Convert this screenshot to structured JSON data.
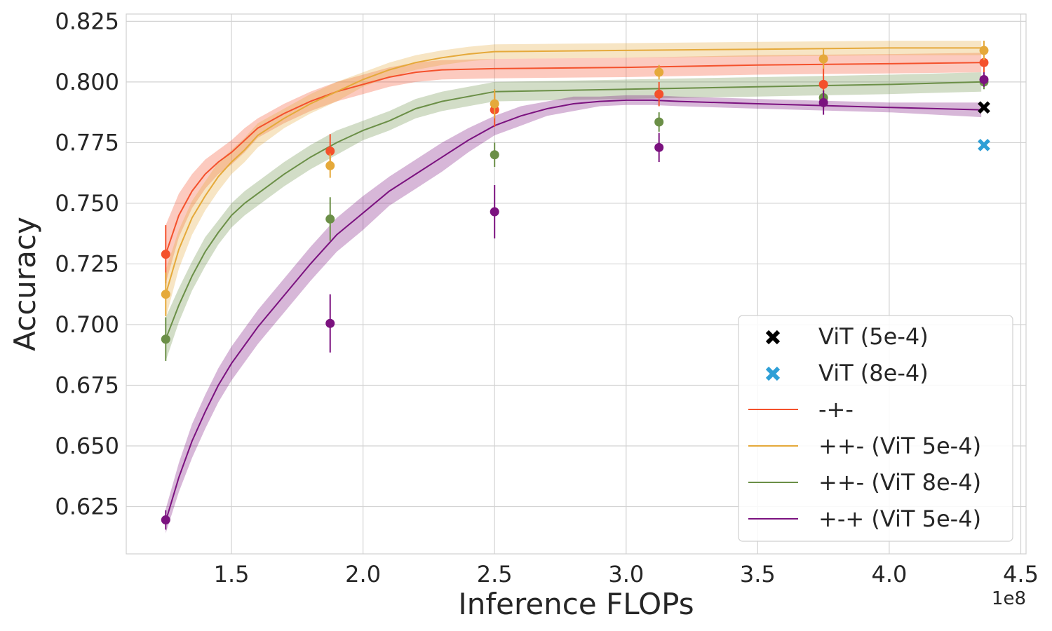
{
  "chart_data": {
    "type": "line",
    "xlabel": "Inference FLOPs",
    "ylabel": "Accuracy",
    "x_offset_label": "1e8",
    "xlim": [
      1.1,
      4.52
    ],
    "ylim": [
      0.6055,
      0.828
    ],
    "x_ticks": [
      1.5,
      2.0,
      2.5,
      3.0,
      3.5,
      4.0,
      4.5
    ],
    "x_tick_labels": [
      "1.5",
      "2.0",
      "2.5",
      "3.0",
      "3.5",
      "4.0",
      "4.5"
    ],
    "y_ticks": [
      0.625,
      0.65,
      0.675,
      0.7,
      0.725,
      0.75,
      0.775,
      0.8,
      0.825
    ],
    "y_tick_labels": [
      "0.625",
      "0.650",
      "0.675",
      "0.700",
      "0.725",
      "0.750",
      "0.775",
      "0.800",
      "0.825"
    ],
    "grid": true,
    "legend_position": "lower-right",
    "series": [
      {
        "name": "-+-",
        "color": "#f4512c",
        "curve_x": [
          1.25,
          1.3,
          1.35,
          1.4,
          1.45,
          1.5,
          1.55,
          1.6,
          1.7,
          1.8,
          1.9,
          2.0,
          2.1,
          2.2,
          2.3,
          2.5,
          3.0,
          3.5,
          4.0,
          4.35
        ],
        "curve_y": [
          0.729,
          0.745,
          0.755,
          0.762,
          0.767,
          0.771,
          0.776,
          0.781,
          0.787,
          0.792,
          0.796,
          0.799,
          0.802,
          0.804,
          0.805,
          0.8055,
          0.806,
          0.807,
          0.8075,
          0.808
        ],
        "band": [
          0.012,
          0.009,
          0.007,
          0.006,
          0.005,
          0.005,
          0.005,
          0.004,
          0.004,
          0.004,
          0.004,
          0.004,
          0.004,
          0.004,
          0.004,
          0.004,
          0.004,
          0.004,
          0.004,
          0.004
        ],
        "points_x": [
          1.25,
          1.875,
          2.5,
          3.125,
          3.75,
          4.36
        ],
        "points_y": [
          0.729,
          0.7715,
          0.7885,
          0.795,
          0.799,
          0.808
        ],
        "points_err": [
          0.012,
          0.007,
          0.007,
          0.005,
          0.01,
          0.004
        ]
      },
      {
        "name": "++- (ViT 5e-4)",
        "color": "#e5a93a",
        "curve_x": [
          1.25,
          1.3,
          1.35,
          1.4,
          1.45,
          1.5,
          1.55,
          1.6,
          1.7,
          1.8,
          1.9,
          2.0,
          2.1,
          2.2,
          2.3,
          2.4,
          2.5,
          3.0,
          3.5,
          4.0,
          4.35
        ],
        "curve_y": [
          0.7125,
          0.731,
          0.744,
          0.753,
          0.761,
          0.767,
          0.772,
          0.778,
          0.785,
          0.791,
          0.796,
          0.801,
          0.805,
          0.808,
          0.81,
          0.8115,
          0.8125,
          0.813,
          0.8135,
          0.814,
          0.814
        ],
        "band": [
          0.01,
          0.008,
          0.007,
          0.006,
          0.006,
          0.005,
          0.005,
          0.005,
          0.004,
          0.004,
          0.004,
          0.003,
          0.003,
          0.003,
          0.003,
          0.003,
          0.003,
          0.003,
          0.003,
          0.003,
          0.003
        ],
        "points_x": [
          1.25,
          1.875,
          2.5,
          3.125,
          3.75,
          4.36
        ],
        "points_y": [
          0.7125,
          0.7655,
          0.791,
          0.804,
          0.8095,
          0.813
        ],
        "points_err": [
          0.009,
          0.005,
          0.006,
          0.003,
          0.004,
          0.004
        ]
      },
      {
        "name": "++- (ViT 8e-4)",
        "color": "#6b8f47",
        "curve_x": [
          1.25,
          1.3,
          1.35,
          1.4,
          1.45,
          1.5,
          1.55,
          1.6,
          1.7,
          1.8,
          1.9,
          2.0,
          2.1,
          2.2,
          2.3,
          2.5,
          3.0,
          3.5,
          4.0,
          4.35
        ],
        "curve_y": [
          0.694,
          0.708,
          0.72,
          0.73,
          0.738,
          0.745,
          0.75,
          0.754,
          0.762,
          0.769,
          0.775,
          0.78,
          0.784,
          0.789,
          0.792,
          0.796,
          0.797,
          0.798,
          0.799,
          0.8
        ],
        "band": [
          0.009,
          0.007,
          0.006,
          0.006,
          0.005,
          0.005,
          0.005,
          0.005,
          0.005,
          0.005,
          0.005,
          0.004,
          0.004,
          0.004,
          0.004,
          0.004,
          0.004,
          0.004,
          0.004,
          0.004
        ],
        "points_x": [
          1.25,
          1.875,
          2.5,
          3.125,
          3.75,
          4.36
        ],
        "points_y": [
          0.694,
          0.7435,
          0.77,
          0.7835,
          0.7935,
          0.8
        ],
        "points_err": [
          0.009,
          0.009,
          0.005,
          0.004,
          0.003,
          0.003
        ]
      },
      {
        "name": "+-+ (ViT 5e-4)",
        "color": "#7b127f",
        "curve_x": [
          1.25,
          1.3,
          1.35,
          1.4,
          1.45,
          1.5,
          1.6,
          1.7,
          1.8,
          1.9,
          2.0,
          2.1,
          2.2,
          2.3,
          2.4,
          2.5,
          2.6,
          2.7,
          2.8,
          2.9,
          3.0,
          3.1,
          3.2,
          3.5,
          4.0,
          4.35
        ],
        "curve_y": [
          0.619,
          0.637,
          0.652,
          0.664,
          0.675,
          0.684,
          0.699,
          0.712,
          0.725,
          0.737,
          0.746,
          0.755,
          0.762,
          0.769,
          0.776,
          0.782,
          0.786,
          0.789,
          0.791,
          0.792,
          0.7925,
          0.7925,
          0.792,
          0.791,
          0.7895,
          0.7885
        ],
        "band": [
          0.005,
          0.006,
          0.007,
          0.007,
          0.007,
          0.007,
          0.007,
          0.007,
          0.007,
          0.007,
          0.007,
          0.006,
          0.006,
          0.006,
          0.005,
          0.004,
          0.004,
          0.003,
          0.003,
          0.002,
          0.002,
          0.002,
          0.002,
          0.002,
          0.002,
          0.003
        ],
        "points_x": [
          1.25,
          1.875,
          2.5,
          3.125,
          3.75,
          4.36
        ],
        "points_y": [
          0.6195,
          0.7005,
          0.7465,
          0.773,
          0.7915,
          0.801
        ],
        "points_err": [
          0.004,
          0.012,
          0.011,
          0.006,
          0.005,
          0.003
        ]
      }
    ],
    "markers": [
      {
        "name": "ViT (5e-4)",
        "color": "#000000",
        "x": 4.36,
        "y": 0.7895
      },
      {
        "name": "ViT (8e-4)",
        "color": "#2e9fd6",
        "x": 4.36,
        "y": 0.774
      }
    ],
    "legend": [
      {
        "label": "ViT (5e-4)",
        "kind": "marker",
        "color": "#000000"
      },
      {
        "label": "ViT (8e-4)",
        "kind": "marker",
        "color": "#2e9fd6"
      },
      {
        "label": "-+-",
        "kind": "line",
        "color": "#f4512c"
      },
      {
        "label": "++- (ViT 5e-4)",
        "kind": "line",
        "color": "#e5a93a"
      },
      {
        "label": "++- (ViT 8e-4)",
        "kind": "line",
        "color": "#6b8f47"
      },
      {
        "label": "+-+ (ViT 5e-4)",
        "kind": "line",
        "color": "#7b127f"
      }
    ]
  }
}
